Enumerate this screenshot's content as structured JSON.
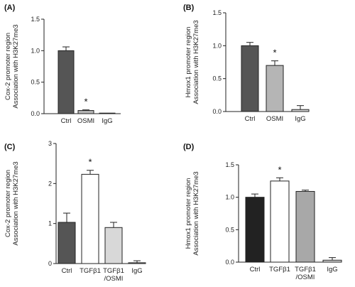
{
  "chart_data": [
    {
      "panel": "(A)",
      "type": "bar",
      "categories": [
        "Ctrl",
        "OSMI",
        "IgG"
      ],
      "values": [
        1.0,
        0.05,
        0.0
      ],
      "errors": [
        0.06,
        0.01,
        0.0
      ],
      "significance": [
        "",
        "*",
        ""
      ],
      "bar_colors": [
        "#555555",
        "#b5b5b5",
        "#b5b5b5"
      ],
      "ylabel": [
        "Cox-2 promoter region",
        "Association with H3K27me3"
      ],
      "yticks": [
        "0.0",
        "0.5",
        "1.0",
        "1.5"
      ],
      "ylim": [
        0,
        1.5
      ]
    },
    {
      "panel": "(B)",
      "type": "bar",
      "categories": [
        "Ctrl",
        "OSMI",
        "IgG"
      ],
      "values": [
        1.0,
        0.7,
        0.03
      ],
      "errors": [
        0.05,
        0.07,
        0.06
      ],
      "significance": [
        "",
        "*",
        ""
      ],
      "bar_colors": [
        "#555555",
        "#b5b5b5",
        "#d6d6d6"
      ],
      "ylabel": [
        "Hmox1 promoter region",
        "Association with H3K27me3"
      ],
      "yticks": [
        "0.0",
        "0.5",
        "1.0",
        "1.5"
      ],
      "ylim": [
        0,
        1.5
      ]
    },
    {
      "panel": "(C)",
      "type": "bar",
      "categories": [
        "Ctrl",
        "TGFβ1",
        "TGFβ1\n/OSMI",
        "IgG"
      ],
      "values": [
        1.03,
        2.23,
        0.9,
        0.02
      ],
      "errors": [
        0.23,
        0.1,
        0.13,
        0.05
      ],
      "significance": [
        "",
        "*",
        "",
        ""
      ],
      "bar_colors": [
        "#555555",
        "#ffffff",
        "#d8d8d8",
        "#d8d8d8"
      ],
      "ylabel": [
        "Cox-2 promoter region",
        "Association with H3K27me3"
      ],
      "yticks": [
        "0",
        "1",
        "2",
        "3"
      ],
      "ylim": [
        0,
        3
      ]
    },
    {
      "panel": "(D)",
      "type": "bar",
      "categories": [
        "Ctrl",
        "TGFβ1",
        "TGFβ1\n/OSMI",
        "IgG"
      ],
      "values": [
        1.0,
        1.25,
        1.09,
        0.03
      ],
      "errors": [
        0.05,
        0.05,
        0.02,
        0.04
      ],
      "significance": [
        "",
        "*",
        "",
        ""
      ],
      "bar_colors": [
        "#222222",
        "#ffffff",
        "#a8a8a8",
        "#d8d8d8"
      ],
      "ylabel": [
        "Hmox1 promoter region",
        "Association with H3K27me3"
      ],
      "yticks": [
        "0.0",
        "0.5",
        "1.0",
        "1.5"
      ],
      "ylim": [
        0,
        1.5
      ]
    }
  ]
}
